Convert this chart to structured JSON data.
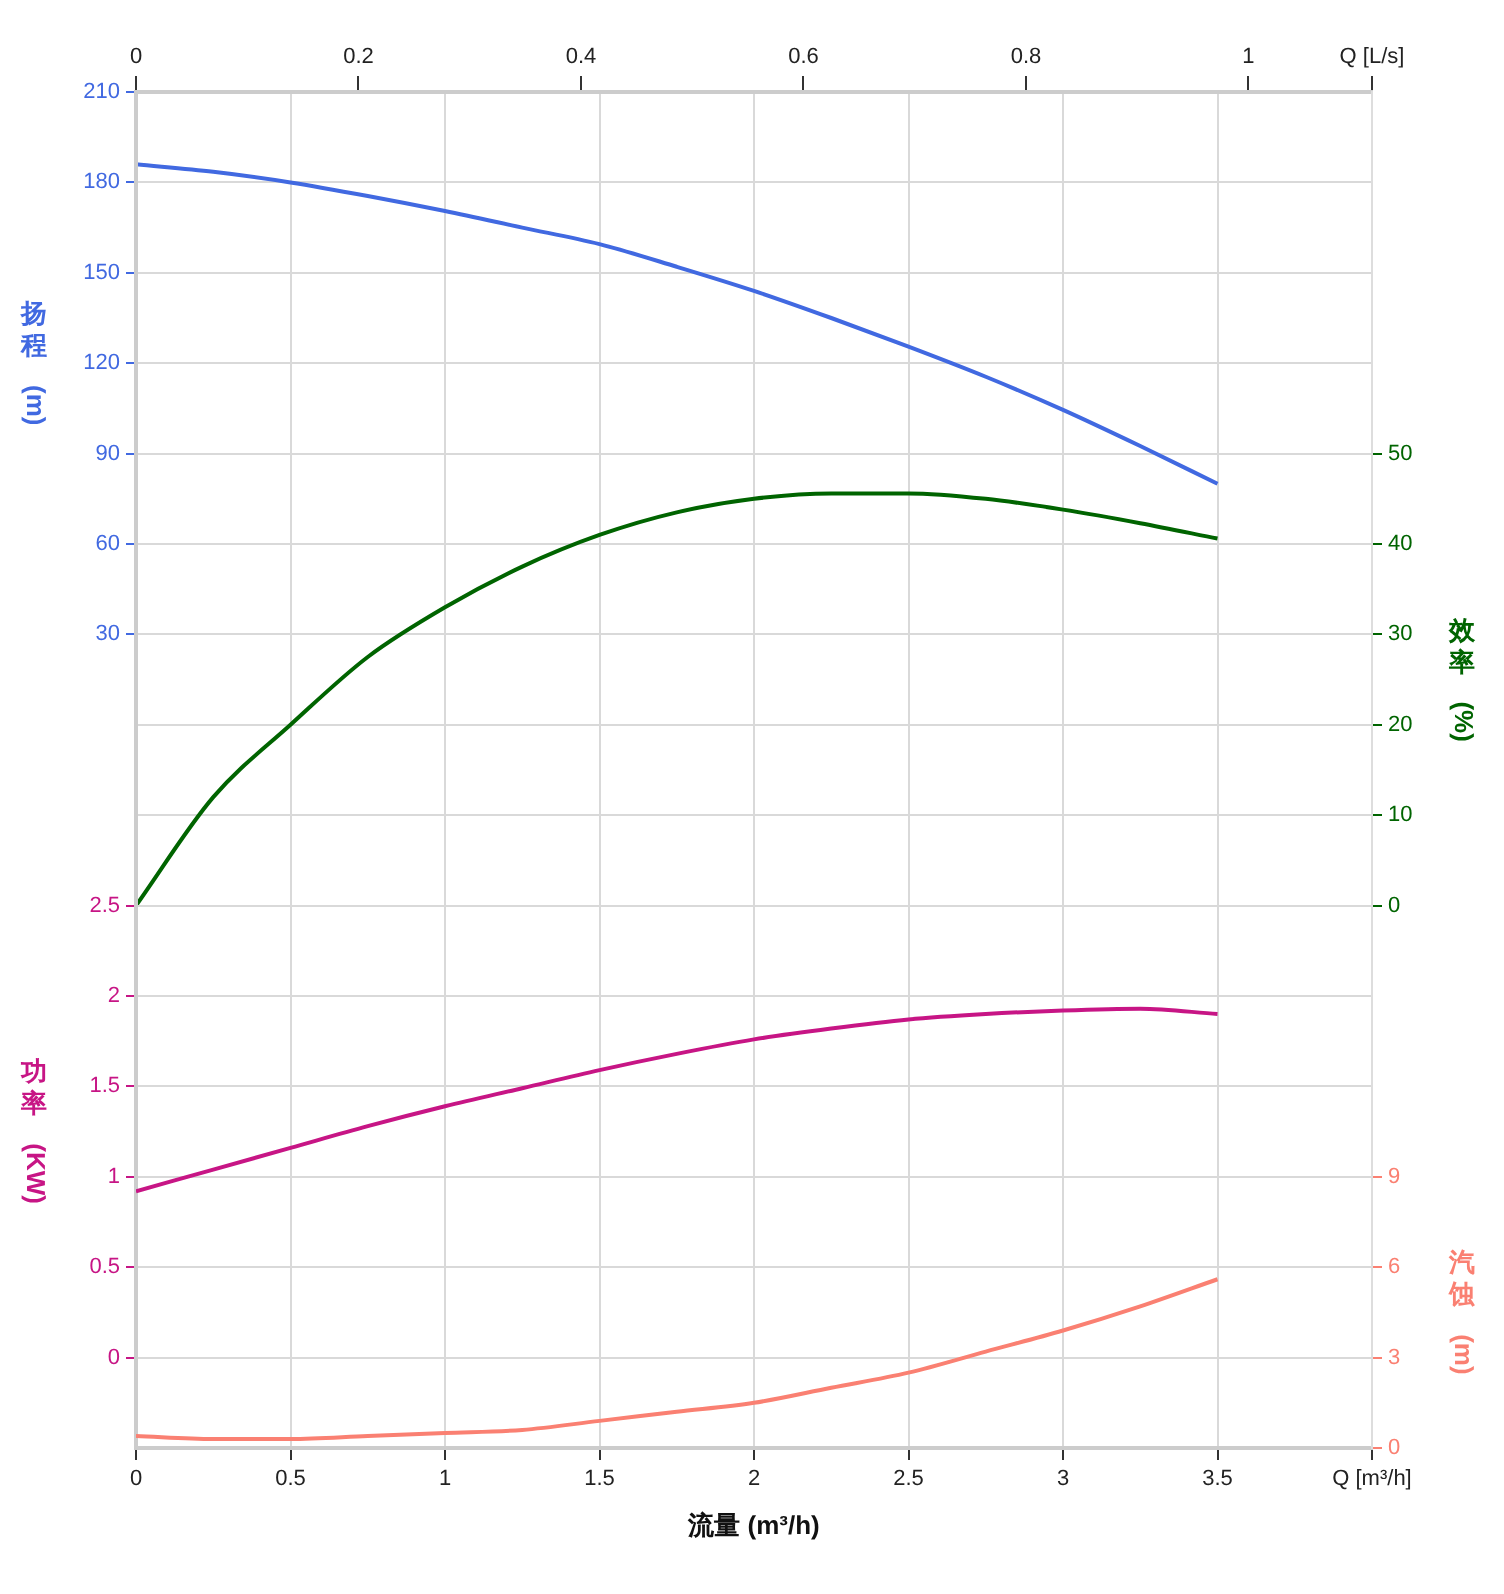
{
  "chart_data": [
    {
      "type": "line",
      "xlabel": "流量 (m³/h)",
      "ylabel": "扬程 (m)",
      "y2label": "效率 (%)",
      "x": [
        0,
        0.25,
        0.5,
        0.75,
        1,
        1.25,
        1.5,
        1.75,
        2,
        2.25,
        2.5,
        2.75,
        3,
        3.25,
        3.5
      ],
      "xlim": [
        0,
        4
      ],
      "xticks": [
        0,
        0.5,
        1,
        1.5,
        2,
        2.5,
        3,
        3.5,
        {
          "value": 4,
          "label": "Q [m³/h]"
        }
      ],
      "x2lim": [
        0,
        1.1111
      ],
      "x2ticks": [
        0,
        0.2,
        0.4,
        0.6,
        0.8,
        1,
        {
          "value": 1.1111,
          "label": "Q [L/s]"
        }
      ],
      "ylim": [
        -240,
        210
      ],
      "yticks": [
        30,
        60,
        90,
        120,
        150,
        180,
        210
      ],
      "y2lim": [
        -60,
        90
      ],
      "y2ticks": [
        0,
        10,
        20,
        30,
        40,
        50
      ],
      "grid": true,
      "line_style": "solid",
      "series": [
        {
          "color": "#4169e1",
          "values": [
            186,
            183.5,
            180,
            175.5,
            170.5,
            165,
            159.5,
            152,
            144,
            135,
            125.5,
            115.5,
            104.5,
            92.5,
            80
          ]
        },
        {
          "axis": "y2",
          "color": "#006400",
          "values": [
            0,
            12,
            20,
            27.5,
            33,
            37.5,
            41,
            43.5,
            45,
            45.6,
            45.6,
            45,
            43.8,
            42.3,
            40.6
          ]
        }
      ]
    },
    {
      "type": "line",
      "ylabel": "功率 (KW)",
      "y2label": "汽蚀 (m)",
      "tick_labels": "y",
      "x": [
        0,
        0.25,
        0.5,
        0.75,
        1,
        1.25,
        1.5,
        1.75,
        2,
        2.25,
        2.5,
        2.75,
        3,
        3.25,
        3.5
      ],
      "xlim": [
        0,
        4
      ],
      "ylim": [
        -0.5,
        7
      ],
      "yticks": [
        0,
        0.5,
        1,
        1.5,
        2,
        2.5
      ],
      "y2lim": [
        0,
        45
      ],
      "y2ticks": [
        0,
        3,
        6,
        9
      ],
      "grid": true,
      "line_style": "solid",
      "series": [
        {
          "color": "#c71585",
          "values": [
            0.92,
            1.04,
            1.16,
            1.28,
            1.39,
            1.49,
            1.59,
            1.68,
            1.76,
            1.82,
            1.87,
            1.9,
            1.92,
            1.93,
            1.9
          ]
        },
        {
          "axis": "y2",
          "color": "#fa8072",
          "values": [
            0.4,
            0.3,
            0.3,
            0.4,
            0.5,
            0.6,
            0.9,
            1.2,
            1.5,
            2.0,
            2.5,
            3.2,
            3.9,
            4.7,
            5.6
          ]
        }
      ]
    }
  ]
}
